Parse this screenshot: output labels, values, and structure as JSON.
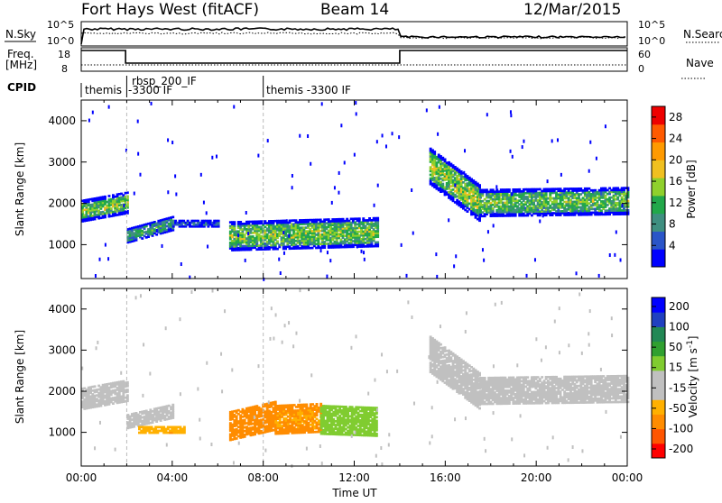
{
  "header": {
    "title": "Fort Hays West (fitACF)",
    "beam": "Beam 14",
    "date": "12/Mar/2015"
  },
  "status_panels": {
    "nsky": {
      "label": "N.Sky",
      "left_ticks": [
        "10^5",
        "10^0"
      ],
      "right_ticks": [
        "10^5",
        "10^0"
      ],
      "right_label": "N.Search"
    },
    "freq": {
      "label_line1": "Freq.",
      "label_line2": "[MHz]",
      "left_ticks": [
        "18",
        "8"
      ],
      "right_ticks": [
        "60",
        "0"
      ],
      "right_label": "Nave"
    },
    "cpid": {
      "label": "CPID",
      "segments": [
        {
          "line1": "themis",
          "line2": ""
        },
        {
          "line1": "rbsp_200_IF",
          "line2": "-3300 IF"
        },
        {
          "line1": "themis -3300 IF",
          "line2": ""
        }
      ],
      "boundaries_ut": [
        "02:00",
        "08:00"
      ]
    },
    "freq_series": [
      {
        "x": [
          0,
          1.95
        ],
        "y": 18
      },
      {
        "x": [
          1.95,
          14.0
        ],
        "y": 11
      },
      {
        "x": [
          14.0,
          24
        ],
        "y": 18
      }
    ]
  },
  "colors": {
    "power_scale": [
      "#0000ff",
      "#2a55c8",
      "#3f8f80",
      "#22a84a",
      "#8fd02c",
      "#f0c020",
      "#ff9a00",
      "#ff5a00",
      "#ee0000"
    ],
    "velocity_scale": [
      "#ff0000",
      "#ff5500",
      "#ff8c00",
      "#ffb000",
      "#c0c0c0",
      "#c0c0c0",
      "#80cc30",
      "#30a030",
      "#228855",
      "#2040c0",
      "#0000ff"
    ]
  },
  "chart_data": [
    {
      "type": "heatmap",
      "name": "power-panel",
      "xlabel": "",
      "ylabel": "Slant Range [km]",
      "xlim_hours": [
        0,
        24
      ],
      "ylim_km": [
        180,
        4500
      ],
      "yticks": [
        1000,
        2000,
        3000,
        4000
      ],
      "colorbar": {
        "label": "Power [dB]",
        "ticks": [
          4,
          8,
          12,
          16,
          20,
          24,
          28
        ],
        "range": [
          0,
          30
        ]
      },
      "echo_bands": [
        {
          "t": [
            0.0,
            2.0
          ],
          "center": [
            1800,
            2000
          ],
          "width": 500,
          "value": 14
        },
        {
          "t": [
            2.0,
            4.0
          ],
          "center": [
            1200,
            1500
          ],
          "width": 320,
          "value": 10
        },
        {
          "t": [
            4.0,
            6.0
          ],
          "center": [
            1500,
            1500
          ],
          "width": 150,
          "value": 5
        },
        {
          "t": [
            6.5,
            13.0
          ],
          "center": [
            1200,
            1300
          ],
          "width": 700,
          "value": 14
        },
        {
          "t": [
            15.3,
            17.5
          ],
          "center": [
            2900,
            2000
          ],
          "width": 900,
          "value": 15
        },
        {
          "t": [
            17.5,
            24.0
          ],
          "center": [
            2000,
            2050
          ],
          "width": 650,
          "value": 13
        }
      ]
    },
    {
      "type": "heatmap",
      "name": "velocity-panel",
      "xlabel": "Time UT",
      "ylabel": "Slant Range [km]",
      "xlim_hours": [
        0,
        24
      ],
      "ylim_km": [
        180,
        4500
      ],
      "yticks": [
        1000,
        2000,
        3000,
        4000
      ],
      "xtick_labels": [
        "00:00",
        "04:00",
        "08:00",
        "12:00",
        "16:00",
        "20:00",
        "00:00"
      ],
      "colorbar": {
        "label": "Velocity [m s^-1]",
        "ticks": [
          -200,
          -100,
          -50,
          -15,
          15,
          50,
          100,
          200
        ]
      },
      "echo_bands": [
        {
          "t": [
            0.0,
            2.0
          ],
          "center": [
            1800,
            2000
          ],
          "width": 500,
          "value": 0
        },
        {
          "t": [
            2.0,
            4.0
          ],
          "center": [
            1250,
            1500
          ],
          "width": 320,
          "value": 0
        },
        {
          "t": [
            2.5,
            4.5
          ],
          "center": [
            1050,
            1050
          ],
          "width": 150,
          "value": -40
        },
        {
          "t": [
            6.5,
            8.5
          ],
          "center": [
            1150,
            1400
          ],
          "width": 700,
          "value": -60
        },
        {
          "t": [
            8.5,
            10.5
          ],
          "center": [
            1300,
            1350
          ],
          "width": 700,
          "value": -50
        },
        {
          "t": [
            10.5,
            13.0
          ],
          "center": [
            1300,
            1250
          ],
          "width": 700,
          "value": 30
        },
        {
          "t": [
            15.3,
            17.5
          ],
          "center": [
            2900,
            2000
          ],
          "width": 900,
          "value": 0
        },
        {
          "t": [
            17.5,
            24.0
          ],
          "center": [
            2000,
            2050
          ],
          "width": 650,
          "value": 0
        }
      ]
    }
  ]
}
